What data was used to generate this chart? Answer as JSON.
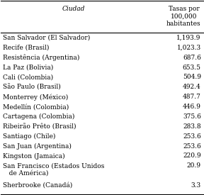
{
  "header_col": "Ciudad",
  "header_val_line1": "Tasas por",
  "header_val_line2": "100,000",
  "header_val_line3": "habitantes",
  "cities": [
    "San Salvador (El Salvador)",
    "Recife (Brasil)",
    "Resistência (Argentina)",
    "La Paz (Bolivia)",
    "Cali (Colombia)",
    "São Paulo (Brasil)",
    "Monterrey (México)",
    "Medellín (Colombia)",
    "Cartagena (Colombia)",
    "Ribeirão Prêto (Brasil)",
    "Santiago (Chile)",
    "San Juan (Argentina)",
    "Kingston (Jamaica)",
    "San Francisco (Estados Unidos\n   de América)",
    "Sherbrooke (Canadá)"
  ],
  "values": [
    "1,193.9",
    "1,023.3",
    "687.6",
    "653.5",
    "504.9",
    "492.4",
    "487.7",
    "446.9",
    "375.6",
    "283.8",
    "253.6",
    "253.6",
    "220.9",
    "20.9",
    "3.3"
  ],
  "bg_color": "#ffffff",
  "text_color": "#000000",
  "font_size": 6.5,
  "header_font_size": 6.5
}
